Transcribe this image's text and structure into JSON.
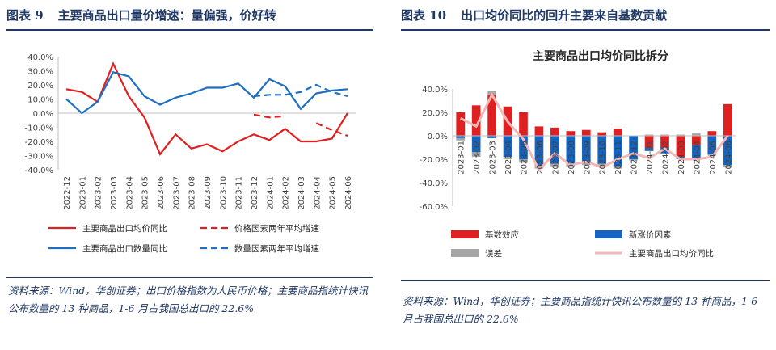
{
  "left": {
    "title_num": "图表 9",
    "title": "主要商品出口量价增速：量偏强，价好转",
    "source": "资料来源：Wind，华创证券；出口价格指数为人民币价格；主要商品指统计快讯公布数量的 13 种商品，1-6 月占我国总出口的 22.6%"
  },
  "right": {
    "title_num": "图表 10",
    "title": "出口均价同比的回升主要来自基数贡献",
    "source": "资料来源：Wind，华创证券；主要商品指统计快讯公布数量的 13 种商品，1-6 月占我国总出口的 22.6%"
  },
  "chart_data": [
    {
      "type": "line",
      "title": "",
      "categories": [
        "2022-12",
        "2023-01",
        "2023-02",
        "2023-03",
        "2023-04",
        "2023-05",
        "2023-06",
        "2023-07",
        "2023-08",
        "2023-09",
        "2023-10",
        "2023-11",
        "2023-12",
        "2024-01",
        "2024-02",
        "2024-03",
        "2024-04",
        "2024-05",
        "2024-06"
      ],
      "ylim": [
        -40,
        40
      ],
      "yticks": [
        "40.0%",
        "30.0%",
        "20.0%",
        "10.0%",
        "0.0%",
        "-10.0%",
        "-20.0%",
        "-30.0%",
        "-40.0%"
      ],
      "ytick_values": [
        40,
        30,
        20,
        10,
        0,
        -10,
        -20,
        -30,
        -40
      ],
      "series": [
        {
          "name": "主要商品出口均价同比",
          "color": "#e02020",
          "dash": false,
          "values": [
            17,
            15,
            8,
            35,
            12,
            -3,
            -29,
            -15,
            -25,
            -22,
            -27,
            -20,
            -15,
            -19,
            -11,
            -20,
            -20,
            -18,
            0
          ]
        },
        {
          "name": "价格因素两年平均增速",
          "color": "#e02020",
          "dash": true,
          "values": [
            null,
            null,
            null,
            null,
            null,
            null,
            null,
            null,
            null,
            null,
            null,
            null,
            -1,
            -3,
            -2,
            null,
            -7,
            -12,
            -16
          ]
        },
        {
          "name": "主要商品出口数量同比",
          "color": "#1f6fc0",
          "dash": false,
          "values": [
            10,
            0,
            8,
            29,
            26,
            12,
            6,
            11,
            14,
            18,
            18,
            21,
            11,
            24,
            19,
            3,
            14,
            16,
            17
          ]
        },
        {
          "name": "数量因素两年平均增速",
          "color": "#1f6fc0",
          "dash": true,
          "values": [
            null,
            null,
            null,
            null,
            null,
            null,
            null,
            null,
            null,
            null,
            null,
            null,
            12,
            13,
            13,
            15,
            20,
            15,
            12
          ]
        }
      ],
      "legend_position": "bottom"
    },
    {
      "type": "bar",
      "title": "主要商品出口均价同比拆分",
      "categories": [
        "2023-01",
        "2023-02",
        "2023-03",
        "2023-04",
        "2023-05",
        "2023-06",
        "2023-07",
        "2023-08",
        "2023-09",
        "2023-10",
        "2023-11",
        "2023-12",
        "2024-01",
        "2024-02",
        "2024-03",
        "2024-04",
        "2024-05",
        "2024-06"
      ],
      "ylim": [
        -60,
        40
      ],
      "yticks": [
        "40.0%",
        "20.0%",
        "0.0%",
        "-20.0%",
        "-40.0%",
        "-60.0%"
      ],
      "ytick_values": [
        40,
        20,
        0,
        -20,
        -40,
        -60
      ],
      "stacked": true,
      "series": [
        {
          "name": "基数效应",
          "color": "#e02020",
          "values": [
            20,
            26,
            35,
            25,
            20,
            8,
            7,
            4,
            5,
            3,
            6,
            0,
            -10,
            -10,
            -18,
            -8,
            4,
            27
          ]
        },
        {
          "name": "新涨价因素",
          "color": "#1565c0",
          "values": [
            -2,
            -14,
            -2,
            -18,
            -20,
            -25,
            -24,
            -24,
            -23,
            -24,
            -26,
            -20,
            -3,
            -5,
            -2,
            -12,
            -16,
            -25
          ]
        },
        {
          "name": "误差",
          "color": "#a6a6a6",
          "values": [
            -2,
            -4,
            3,
            -2,
            -3,
            -3,
            -2,
            -2,
            -2,
            -2,
            -2,
            -1,
            1,
            1,
            1,
            2,
            -1,
            -2
          ]
        },
        {
          "name": "主要商品出口均价同比",
          "color": "#f4b6b6",
          "kind": "line",
          "values": [
            15,
            8,
            35,
            12,
            -3,
            -29,
            -15,
            -25,
            -22,
            -27,
            -20,
            -15,
            -19,
            -11,
            -20,
            -20,
            -18,
            0
          ]
        }
      ],
      "legend_position": "bottom"
    }
  ]
}
